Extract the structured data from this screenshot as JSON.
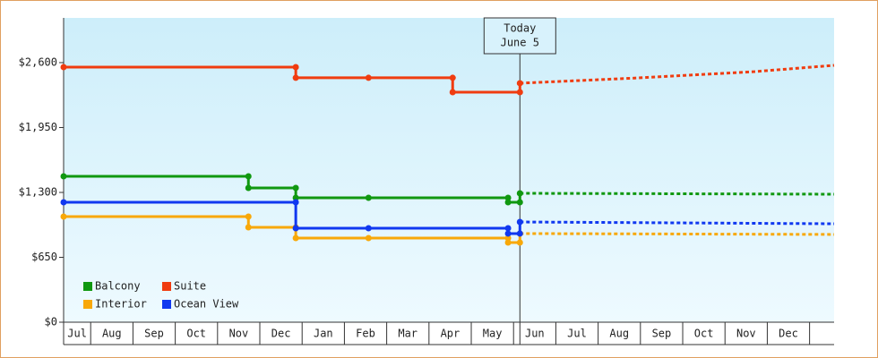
{
  "chart_data": {
    "type": "line",
    "xlim": [
      -0.64,
      17.58
    ],
    "ylim": [
      0,
      3048
    ],
    "yticks": [
      {
        "value": 0,
        "label": "$0"
      },
      {
        "value": 650,
        "label": "$650"
      },
      {
        "value": 1300,
        "label": "$1,300"
      },
      {
        "value": 1950,
        "label": "$1,950"
      },
      {
        "value": 2600,
        "label": "$2,600"
      }
    ],
    "xticks": [
      {
        "value": -0.5,
        "label": "Jul"
      },
      {
        "value": 0.5,
        "label": "Aug"
      },
      {
        "value": 1.5,
        "label": "Sep"
      },
      {
        "value": 2.5,
        "label": "Oct"
      },
      {
        "value": 3.5,
        "label": "Nov"
      },
      {
        "value": 4.5,
        "label": "Dec"
      },
      {
        "value": 5.5,
        "label": "Jan"
      },
      {
        "value": 6.5,
        "label": "Feb"
      },
      {
        "value": 7.5,
        "label": "Mar"
      },
      {
        "value": 8.5,
        "label": "Apr"
      },
      {
        "value": 9.5,
        "label": "May"
      },
      {
        "value": 10.5,
        "label": "Jun"
      },
      {
        "value": 11.5,
        "label": "Jul"
      },
      {
        "value": 12.5,
        "label": "Aug"
      },
      {
        "value": 13.5,
        "label": "Sep"
      },
      {
        "value": 14.5,
        "label": "Oct"
      },
      {
        "value": 15.5,
        "label": "Nov"
      },
      {
        "value": 16.5,
        "label": "Dec"
      }
    ],
    "annotation": {
      "x": 10.15,
      "lines": [
        "Today",
        "June 5"
      ]
    },
    "series": [
      {
        "name": "Balcony",
        "color": "#109810",
        "x": [
          -0.64,
          3.73,
          3.73,
          4.85,
          4.85,
          6.57,
          9.87,
          9.87,
          10.15,
          10.15
        ],
        "values": [
          1461,
          1461,
          1345,
          1345,
          1246,
          1246,
          1246,
          1201,
          1201,
          1291
        ],
        "forecast_x": [
          10.15,
          17.58
        ],
        "forecast_values": [
          1291,
          1282
        ]
      },
      {
        "name": "Suite",
        "color": "#f03c10",
        "x": [
          -0.64,
          4.85,
          4.85,
          6.57,
          8.56,
          8.56,
          10.15,
          10.15
        ],
        "values": [
          2555,
          2555,
          2448,
          2448,
          2448,
          2304,
          2304,
          2394
        ],
        "forecast_x": [
          10.15,
          13.0,
          15.7,
          17.58
        ],
        "forecast_values": [
          2394,
          2448,
          2510,
          2573
        ]
      },
      {
        "name": "Interior",
        "color": "#f8a808",
        "x": [
          -0.64,
          3.73,
          3.73,
          4.85,
          4.85,
          6.57,
          9.87,
          9.87,
          10.15,
          10.15
        ],
        "values": [
          1058,
          1058,
          950,
          950,
          843,
          843,
          843,
          798,
          798,
          888
        ],
        "forecast_x": [
          10.15,
          17.58
        ],
        "forecast_values": [
          888,
          879
        ]
      },
      {
        "name": "Ocean View",
        "color": "#1038f0",
        "x": [
          -0.64,
          4.85,
          4.85,
          6.57,
          9.87,
          9.87,
          10.15,
          10.15
        ],
        "values": [
          1201,
          1201,
          941,
          941,
          941,
          888,
          888,
          1004
        ],
        "forecast_x": [
          10.15,
          17.58
        ],
        "forecast_values": [
          1004,
          986
        ]
      }
    ]
  }
}
